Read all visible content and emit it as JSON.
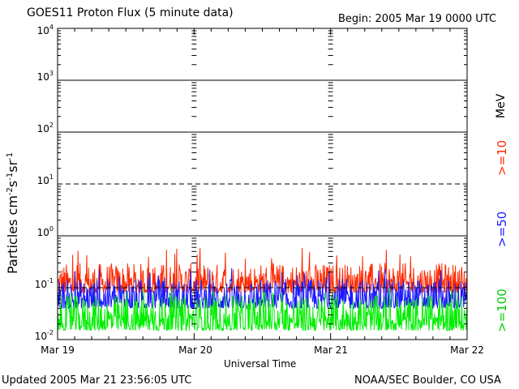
{
  "chart_data": {
    "type": "line",
    "title": "GOES11 Proton Flux (5 minute data)",
    "begin_label": "Begin: 2005 Mar 19 0000 UTC",
    "xlabel": "Universal Time",
    "ylabel": "Particles cm⁻²s⁻¹sr⁻¹",
    "y_scale": "log",
    "ylim": [
      0.01,
      10000
    ],
    "x_range_days": [
      0,
      3
    ],
    "x_tick_labels": [
      "Mar 19",
      "Mar 20",
      "Mar 21",
      "Mar 22"
    ],
    "y_tick_labels": [
      "10⁻²",
      "10⁻¹",
      "10⁰",
      "10¹",
      "10²",
      "10³",
      "10⁴"
    ],
    "unit_label": "MeV",
    "series": [
      {
        "name": ">=10",
        "color": "#ff2a00",
        "typical_range": [
          0.08,
          0.3
        ],
        "peak": 0.6
      },
      {
        "name": ">=50",
        "color": "#1a1aff",
        "typical_range": [
          0.04,
          0.15
        ],
        "peak": 0.25
      },
      {
        "name": ">=100",
        "color": "#00ee00",
        "typical_range": [
          0.015,
          0.07
        ],
        "peak": 0.1
      }
    ],
    "grid": "horizontal lines at decades; dashed at 10^1 and 10^-1"
  },
  "footer": {
    "updated": "Updated 2005 Mar 21 23:56:05 UTC",
    "source": "NOAA/SEC Boulder, CO USA"
  }
}
